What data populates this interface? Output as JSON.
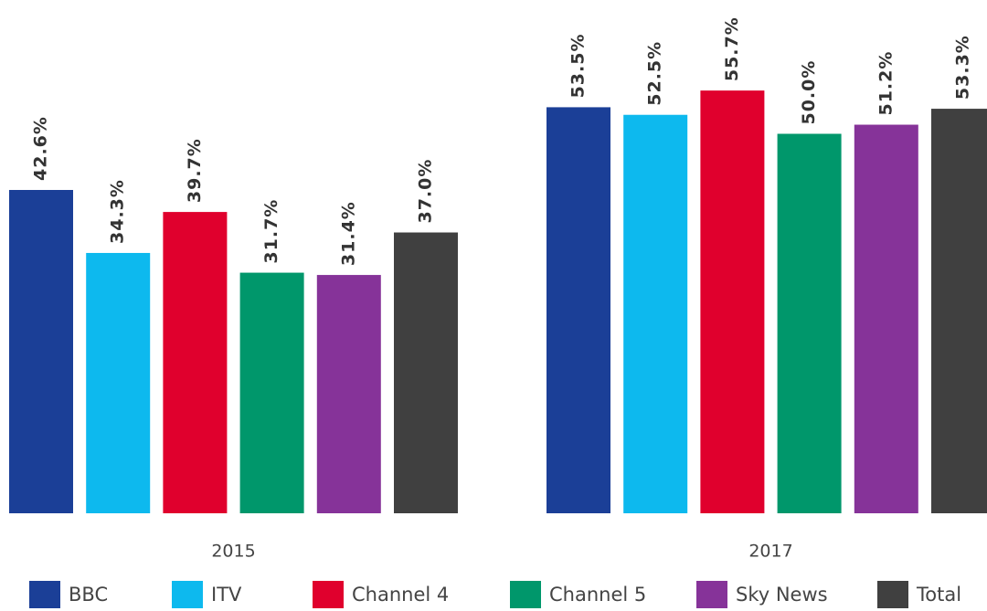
{
  "chart_data": {
    "type": "bar",
    "categories": [
      "2015",
      "2017"
    ],
    "series": [
      {
        "name": "BBC",
        "color": "#1b3f97",
        "values": [
          42.6,
          53.5
        ],
        "value_labels": [
          "42.6%",
          "53.5%"
        ]
      },
      {
        "name": "ITV",
        "color": "#0db9ee",
        "values": [
          34.3,
          52.5
        ],
        "value_labels": [
          "34.3%",
          "52.5%"
        ]
      },
      {
        "name": "Channel 4",
        "color": "#e0002d",
        "values": [
          39.7,
          55.7
        ],
        "value_labels": [
          "39.7%",
          "55.7%"
        ]
      },
      {
        "name": "Channel 5",
        "color": "#00976b",
        "values": [
          31.7,
          50.0
        ],
        "value_labels": [
          "31.7%",
          "50.0%"
        ]
      },
      {
        "name": "Sky News",
        "color": "#863399",
        "values": [
          31.4,
          51.2
        ],
        "value_labels": [
          "31.4%",
          "51.2%"
        ]
      },
      {
        "name": "Total",
        "color": "#404040",
        "values": [
          37.0,
          53.3
        ],
        "value_labels": [
          "37.0%",
          "53.3%"
        ]
      }
    ]
  }
}
